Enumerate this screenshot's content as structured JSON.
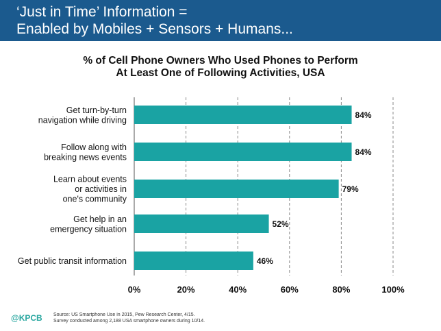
{
  "header": {
    "title_line1": "‘Just in Time’ Information =",
    "title_line2": "Enabled by Mobiles + Sensors + Humans..."
  },
  "chart_data": {
    "type": "bar",
    "orientation": "horizontal",
    "title_line1": "% of Cell Phone Owners Who Used Phones to Perform",
    "title_line2": "At Least One of Following Activities, USA",
    "categories": [
      [
        "Get turn-by-turn",
        "navigation while driving"
      ],
      [
        "Follow along with",
        "breaking news events"
      ],
      [
        "Learn about events",
        "or activities in",
        "one's community"
      ],
      [
        "Get help in an",
        "emergency situation"
      ],
      [
        "Get public transit information"
      ]
    ],
    "values": [
      84,
      84,
      79,
      52,
      46
    ],
    "value_labels": [
      "84%",
      "84%",
      "79%",
      "52%",
      "46%"
    ],
    "xlim": [
      0,
      100
    ],
    "xticks": [
      0,
      20,
      40,
      60,
      80,
      100
    ],
    "xtick_labels": [
      "0%",
      "20%",
      "40%",
      "60%",
      "80%",
      "100%"
    ],
    "grid": "vertical dashed",
    "bar_color": "#1aa3a3"
  },
  "footer": {
    "logo": "@KPCB",
    "source_line1": "Source: US Smartphone Use in 2015, Pew Research Center, 4/15.",
    "source_line2": "Survey conducted among 2,188 USA smartphone owners during 10/14."
  }
}
